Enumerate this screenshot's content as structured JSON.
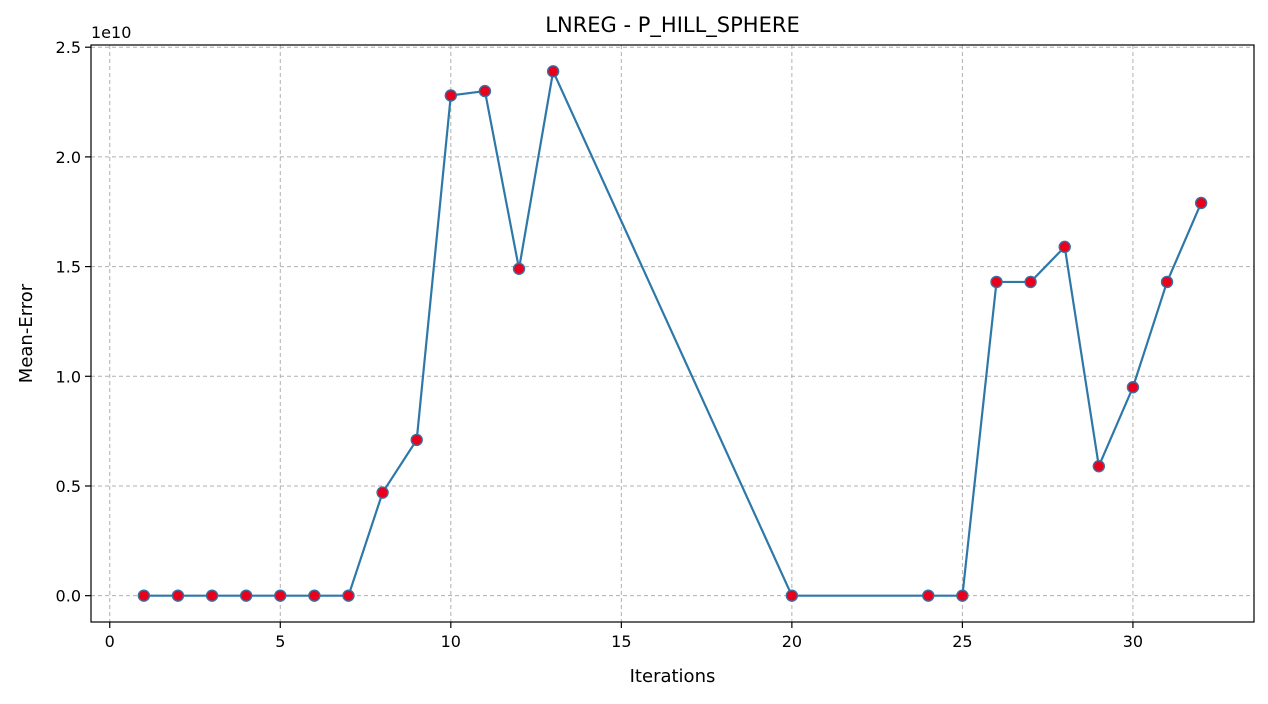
{
  "chart_data": {
    "type": "line",
    "title": "LNREG - P_HILL_SPHERE",
    "xlabel": "Iterations",
    "ylabel": "Mean-Error",
    "y_offset_label": "1e10",
    "xlim": [
      -0.55,
      33.55
    ],
    "ylim": [
      -1200000000.0,
      25100000000.0
    ],
    "x_ticks": [
      0,
      5,
      10,
      15,
      20,
      25,
      30
    ],
    "x_tick_labels": [
      "0",
      "5",
      "10",
      "15",
      "20",
      "25",
      "30"
    ],
    "y_ticks": [
      0,
      5000000000.0,
      10000000000.0,
      15000000000.0,
      20000000000.0,
      25000000000.0
    ],
    "y_tick_labels": [
      "0.0",
      "0.5",
      "1.0",
      "1.5",
      "2.0",
      "2.5"
    ],
    "grid": true,
    "grid_style": "dashed",
    "legend": "none",
    "series": [
      {
        "line_color": "#2e78a8",
        "marker_color": "#e8001c",
        "marker_edge_color": "#3a6fa0",
        "x": [
          1,
          2,
          3,
          4,
          5,
          6,
          7,
          8,
          9,
          10,
          11,
          12,
          13,
          20,
          24,
          25,
          26,
          27,
          28,
          29,
          30,
          31,
          32
        ],
        "y": [
          0,
          0,
          0,
          0,
          0,
          0,
          0,
          4700000000.0,
          7100000000.0,
          22800000000.0,
          23000000000.0,
          14900000000.0,
          23900000000.0,
          0,
          0,
          0,
          14300000000.0,
          14300000000.0,
          15900000000.0,
          5900000000.0,
          9500000000.0,
          14300000000.0,
          17900000000.0
        ]
      }
    ]
  }
}
